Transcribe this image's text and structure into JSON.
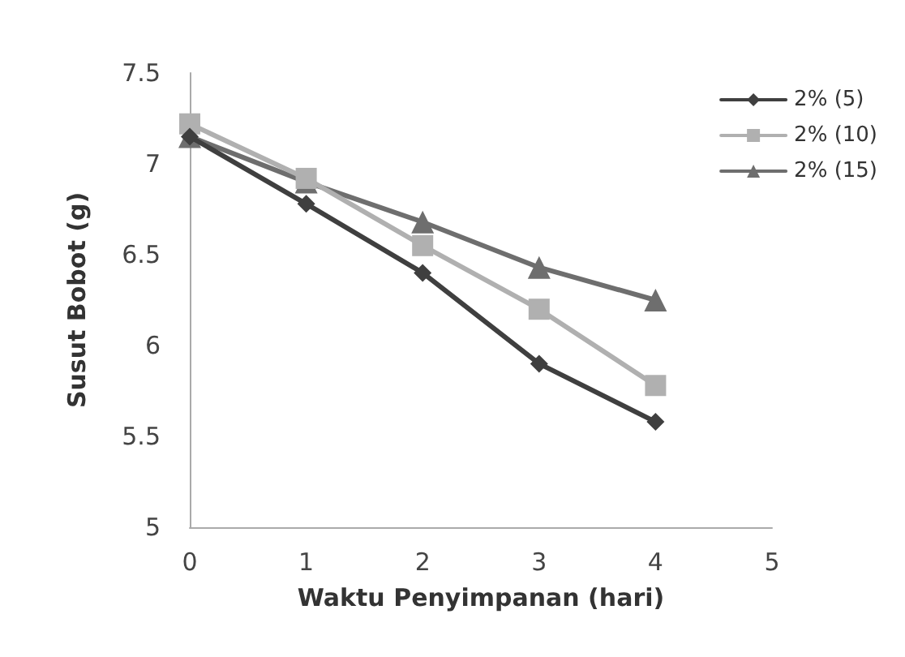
{
  "chart_data": {
    "type": "line",
    "xlabel": "Waktu Penyimpanan (hari)",
    "ylabel": "Susut Bobot (g)",
    "x": [
      0,
      1,
      2,
      3,
      4
    ],
    "series": [
      {
        "name": "2% (5)",
        "color": "#3f3f3f",
        "marker": "diamond",
        "values": [
          7.15,
          6.78,
          6.4,
          5.9,
          5.58
        ]
      },
      {
        "name": "2% (10)",
        "color": "#b0b0b0",
        "marker": "square",
        "values": [
          7.22,
          6.92,
          6.55,
          6.2,
          5.78
        ]
      },
      {
        "name": "2% (15)",
        "color": "#6e6e6e",
        "marker": "triangle",
        "values": [
          7.15,
          6.9,
          6.68,
          6.43,
          6.25
        ]
      }
    ],
    "xlim": [
      0,
      5
    ],
    "xticks": [
      0,
      1,
      2,
      3,
      4,
      5
    ],
    "ylim": [
      5,
      7.5
    ],
    "yticks": [
      5,
      5.5,
      6,
      6.5,
      7,
      7.5
    ],
    "grid": false,
    "legend": "top right"
  }
}
